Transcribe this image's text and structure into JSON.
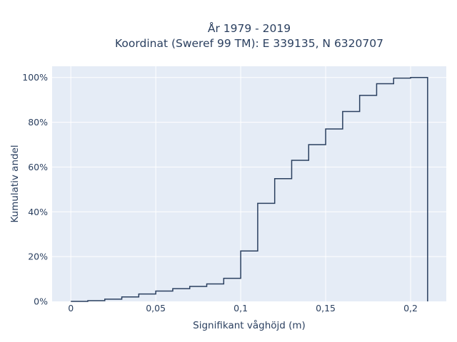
{
  "chart_data": {
    "type": "line",
    "line_shape": "step",
    "title_lines": [
      "År 1979 - 2019",
      "Koordinat (Sweref 99 TM): E 339135, N 6320707"
    ],
    "xlabel": "Signifikant våghöjd (m)",
    "ylabel": "Kumulativ andel",
    "xlim": [
      -0.011,
      0.221
    ],
    "ylim": [
      0,
      1.05
    ],
    "x_ticks": [
      0,
      0.05,
      0.1,
      0.15,
      0.2
    ],
    "x_tick_labels": [
      "0",
      "0,05",
      "0,1",
      "0,15",
      "0,2"
    ],
    "y_ticks": [
      0,
      0.2,
      0.4,
      0.6,
      0.8,
      1.0
    ],
    "y_tick_labels": [
      "0%",
      "20%",
      "40%",
      "60%",
      "80%",
      "100%"
    ],
    "grid": true,
    "colors": {
      "background": "#e5ecf6",
      "grid": "#ffffff",
      "line": "#2a3f5f"
    },
    "series": [
      {
        "x": [
          0,
          0.01,
          0.02,
          0.03,
          0.04,
          0.05,
          0.06,
          0.07,
          0.08,
          0.09,
          0.1,
          0.11,
          0.12,
          0.13,
          0.14,
          0.15,
          0.16,
          0.17,
          0.18,
          0.19,
          0.2,
          0.21,
          0.21
        ],
        "y": [
          0,
          0.003,
          0.01,
          0.02,
          0.033,
          0.046,
          0.057,
          0.067,
          0.078,
          0.103,
          0.225,
          0.438,
          0.548,
          0.63,
          0.7,
          0.77,
          0.848,
          0.92,
          0.972,
          0.997,
          1.0,
          1.0,
          0
        ]
      }
    ]
  }
}
